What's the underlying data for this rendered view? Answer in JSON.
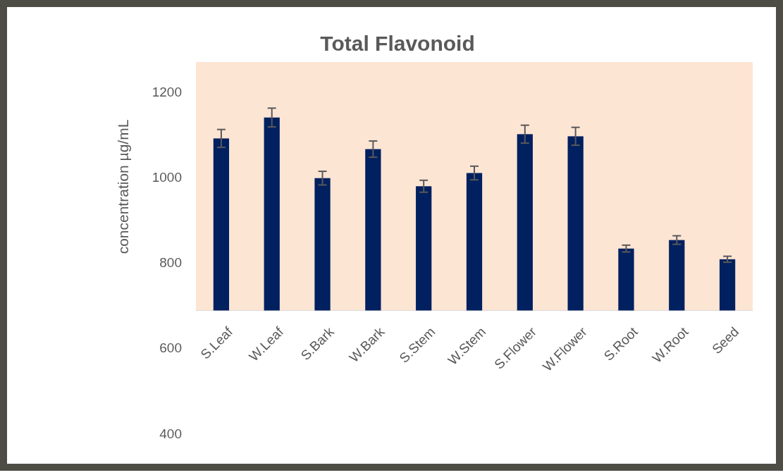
{
  "chart_data": {
    "type": "bar",
    "title": "Total Flavonoid",
    "ylabel": "concentration µg/mL",
    "categories": [
      "S.Leaf",
      "W.Leaf",
      "S.Bark",
      "W.Bark",
      "S.Stem",
      "W.Stem",
      "S.Flower",
      "W.Flower",
      "S.Root",
      "W.Root",
      "Seed"
    ],
    "base": [
      688,
      688,
      688,
      688,
      688,
      688,
      688,
      688,
      688,
      688,
      688
    ],
    "values": [
      403,
      452,
      310,
      378,
      291,
      322,
      413,
      408,
      145,
      165,
      120
    ],
    "errors": [
      21,
      22,
      16,
      19,
      14,
      16,
      21,
      21,
      8,
      10,
      7
    ],
    "color": "#002060",
    "ylim": [
      400,
      1270
    ],
    "yticks": [
      400,
      600,
      800,
      1000,
      1200
    ],
    "bands": [
      {
        "axis": "y",
        "from": 688,
        "to": 1270,
        "color": "#fde5d4"
      }
    ],
    "grid": false
  }
}
